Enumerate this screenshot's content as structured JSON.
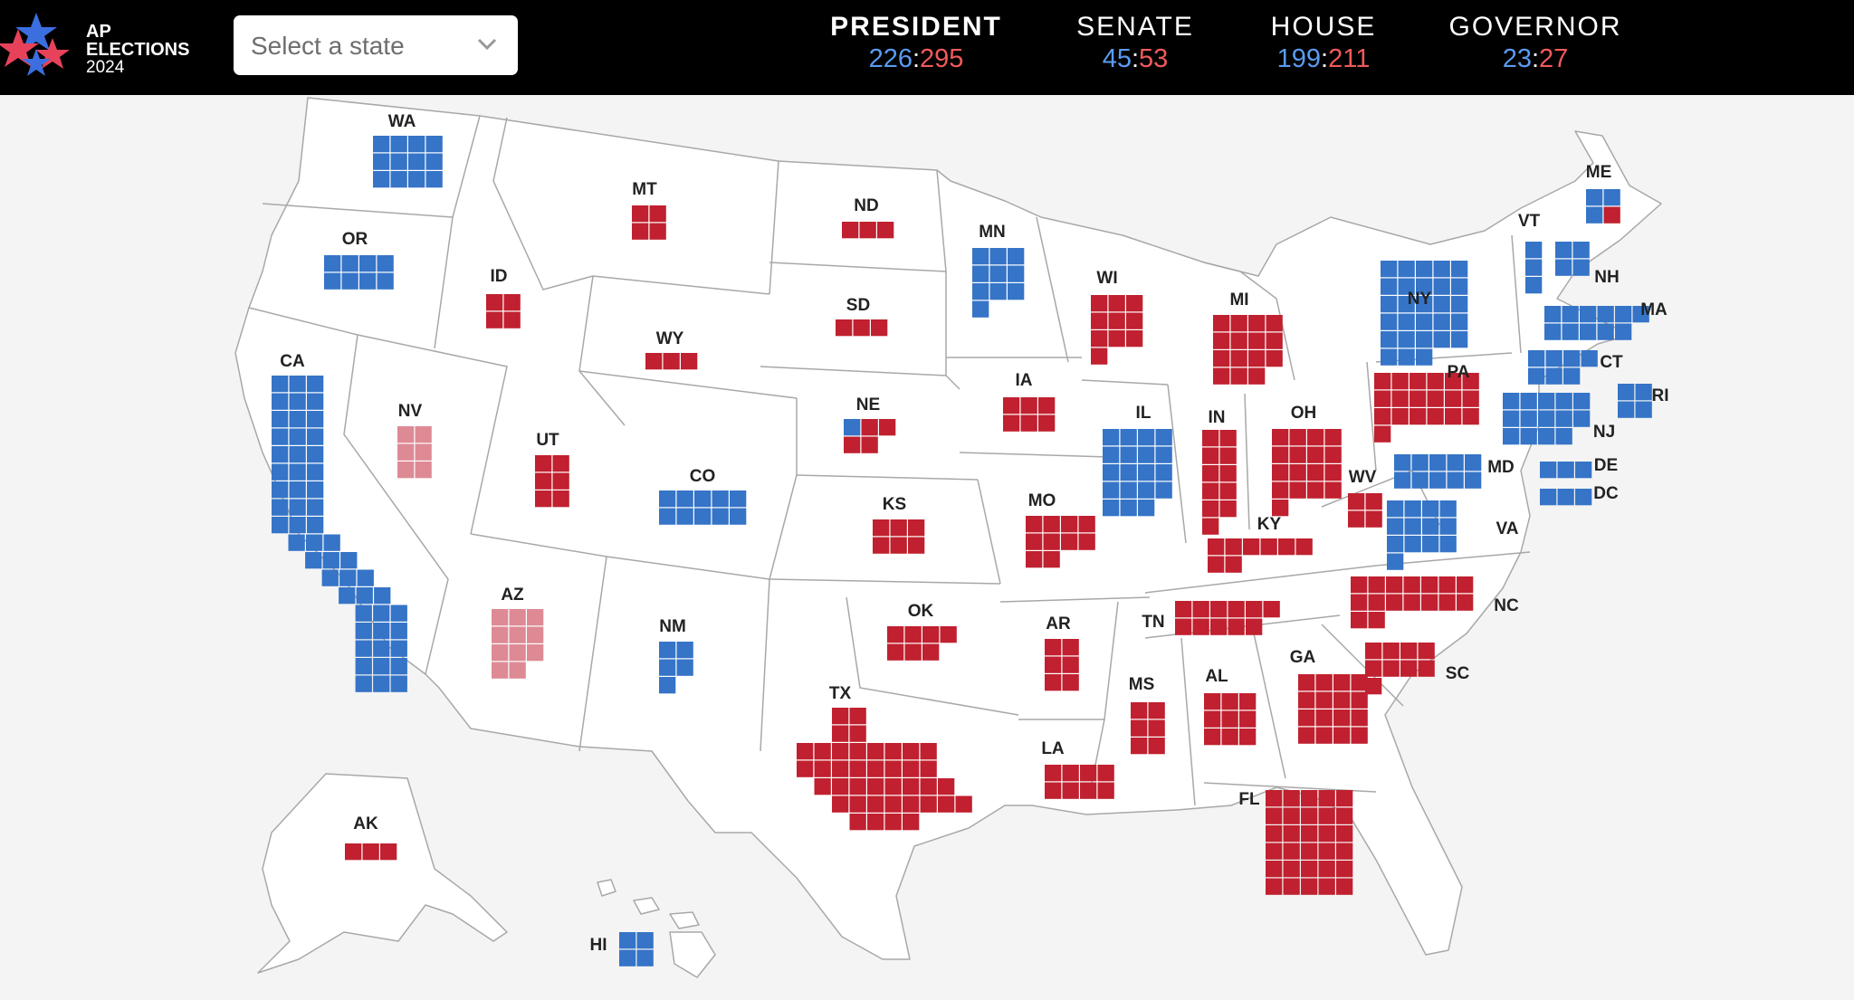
{
  "header": {
    "logo": {
      "line1": "AP",
      "line2": "ELECTIONS",
      "line3": "2024"
    },
    "state_select": {
      "placeholder": "Select a state",
      "icon": "chevron-down-icon"
    },
    "races": [
      {
        "key": "president",
        "label": "PRESIDENT",
        "dem": "226",
        "rep": "295",
        "active": true
      },
      {
        "key": "senate",
        "label": "SENATE",
        "dem": "45",
        "rep": "53",
        "active": false
      },
      {
        "key": "house",
        "label": "HOUSE",
        "dem": "199",
        "rep": "211",
        "active": false
      },
      {
        "key": "governor",
        "label": "GOVERNOR",
        "dem": "23",
        "rep": "27",
        "active": false
      }
    ]
  },
  "colors": {
    "dem": "#3574c7",
    "rep": "#c0202f",
    "dem_leaning": "#8fb4e3",
    "rep_leaning": "#dd8a95",
    "header_bg": "#000000",
    "map_bg": "#f4f4f4",
    "state_fill": "#ffffff",
    "state_border": "#a8a8a8"
  },
  "map": {
    "states": [
      {
        "abbr": "WA",
        "votes": 12,
        "result": "dem"
      },
      {
        "abbr": "OR",
        "votes": 8,
        "result": "dem"
      },
      {
        "abbr": "CA",
        "votes": 54,
        "result": "dem"
      },
      {
        "abbr": "NV",
        "votes": 6,
        "result": "rep_leaning"
      },
      {
        "abbr": "ID",
        "votes": 4,
        "result": "rep"
      },
      {
        "abbr": "MT",
        "votes": 4,
        "result": "rep"
      },
      {
        "abbr": "WY",
        "votes": 3,
        "result": "rep"
      },
      {
        "abbr": "UT",
        "votes": 6,
        "result": "rep"
      },
      {
        "abbr": "AZ",
        "votes": 11,
        "result": "rep_leaning"
      },
      {
        "abbr": "CO",
        "votes": 10,
        "result": "dem"
      },
      {
        "abbr": "NM",
        "votes": 5,
        "result": "dem"
      },
      {
        "abbr": "ND",
        "votes": 3,
        "result": "rep"
      },
      {
        "abbr": "SD",
        "votes": 3,
        "result": "rep"
      },
      {
        "abbr": "NE",
        "votes": 5,
        "result": "split",
        "dem": 1,
        "rep": 4
      },
      {
        "abbr": "KS",
        "votes": 6,
        "result": "rep"
      },
      {
        "abbr": "OK",
        "votes": 7,
        "result": "rep"
      },
      {
        "abbr": "TX",
        "votes": 40,
        "result": "rep"
      },
      {
        "abbr": "MN",
        "votes": 10,
        "result": "dem"
      },
      {
        "abbr": "IA",
        "votes": 6,
        "result": "rep"
      },
      {
        "abbr": "MO",
        "votes": 10,
        "result": "rep"
      },
      {
        "abbr": "AR",
        "votes": 6,
        "result": "rep"
      },
      {
        "abbr": "LA",
        "votes": 8,
        "result": "rep"
      },
      {
        "abbr": "WI",
        "votes": 10,
        "result": "rep"
      },
      {
        "abbr": "IL",
        "votes": 19,
        "result": "dem"
      },
      {
        "abbr": "MI",
        "votes": 15,
        "result": "rep"
      },
      {
        "abbr": "IN",
        "votes": 11,
        "result": "rep"
      },
      {
        "abbr": "OH",
        "votes": 17,
        "result": "rep"
      },
      {
        "abbr": "KY",
        "votes": 8,
        "result": "rep"
      },
      {
        "abbr": "TN",
        "votes": 11,
        "result": "rep"
      },
      {
        "abbr": "MS",
        "votes": 6,
        "result": "rep"
      },
      {
        "abbr": "AL",
        "votes": 9,
        "result": "rep"
      },
      {
        "abbr": "GA",
        "votes": 16,
        "result": "rep"
      },
      {
        "abbr": "FL",
        "votes": 30,
        "result": "rep"
      },
      {
        "abbr": "SC",
        "votes": 9,
        "result": "rep"
      },
      {
        "abbr": "NC",
        "votes": 16,
        "result": "rep"
      },
      {
        "abbr": "VA",
        "votes": 13,
        "result": "dem"
      },
      {
        "abbr": "WV",
        "votes": 4,
        "result": "rep"
      },
      {
        "abbr": "PA",
        "votes": 19,
        "result": "rep"
      },
      {
        "abbr": "NY",
        "votes": 28,
        "result": "dem"
      },
      {
        "abbr": "VT",
        "votes": 3,
        "result": "dem"
      },
      {
        "abbr": "NH",
        "votes": 4,
        "result": "dem"
      },
      {
        "abbr": "ME",
        "votes": 4,
        "result": "split",
        "dem": 3,
        "rep": 1
      },
      {
        "abbr": "MA",
        "votes": 11,
        "result": "dem"
      },
      {
        "abbr": "CT",
        "votes": 7,
        "result": "dem"
      },
      {
        "abbr": "RI",
        "votes": 4,
        "result": "dem"
      },
      {
        "abbr": "NJ",
        "votes": 14,
        "result": "dem"
      },
      {
        "abbr": "DE",
        "votes": 3,
        "result": "dem"
      },
      {
        "abbr": "MD",
        "votes": 10,
        "result": "dem"
      },
      {
        "abbr": "DC",
        "votes": 3,
        "result": "dem"
      },
      {
        "abbr": "AK",
        "votes": 3,
        "result": "rep"
      },
      {
        "abbr": "HI",
        "votes": 4,
        "result": "dem"
      }
    ]
  }
}
